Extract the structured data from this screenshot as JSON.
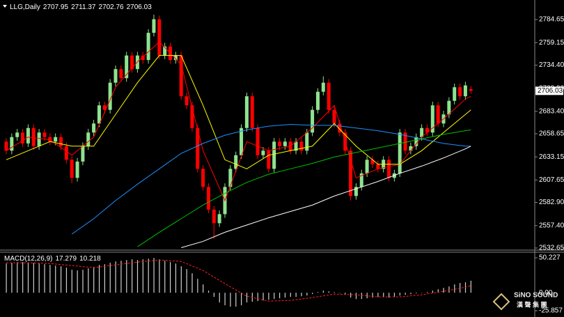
{
  "chart_data": [
    {
      "type": "candlestick",
      "title": "LLG,Daily",
      "up_color": "#8fe38f",
      "down_color": "#ff0000",
      "ylim": [
        2531.1,
        2806.2
      ],
      "yticks": [
        2784.65,
        2759.15,
        {
          "value": 2734.4,
          "label": "2734.40"
        },
        {
          "value": 2708.9,
          "label": "2708.90"
        },
        {
          "value": 2683.4,
          "label": "2683.40"
        },
        2658.65,
        2633.15,
        2607.65,
        {
          "value": 2582.9,
          "label": "2582.90"
        },
        {
          "value": 2557.4,
          "label": "2557.40"
        },
        2532.65
      ],
      "candles": [
        [
          2650,
          2654,
          2636,
          2640
        ],
        [
          2640,
          2659,
          2636,
          2655
        ],
        [
          2655,
          2664,
          2651,
          2660
        ],
        [
          2660,
          2664,
          2644,
          2648
        ],
        [
          2648,
          2669,
          2644,
          2665
        ],
        [
          2665,
          2669,
          2641,
          2645
        ],
        [
          2645,
          2664,
          2641,
          2660
        ],
        [
          2660,
          2664,
          2651,
          2655
        ],
        [
          2655,
          2659,
          2646,
          2650
        ],
        [
          2650,
          2659,
          2646,
          2655
        ],
        [
          2655,
          2659,
          2641,
          2645
        ],
        [
          2645,
          2649,
          2626,
          2630
        ],
        [
          2630,
          2634,
          2604,
          2610
        ],
        [
          2610,
          2632,
          2606,
          2628
        ],
        [
          2628,
          2649,
          2624,
          2645
        ],
        [
          2645,
          2664,
          2641,
          2660
        ],
        [
          2660,
          2674,
          2656,
          2670
        ],
        [
          2670,
          2694,
          2666,
          2690
        ],
        [
          2690,
          2694,
          2681,
          2685
        ],
        [
          2685,
          2719,
          2681,
          2715
        ],
        [
          2715,
          2734,
          2711,
          2730
        ],
        [
          2730,
          2734,
          2716,
          2720
        ],
        [
          2720,
          2749,
          2716,
          2745
        ],
        [
          2745,
          2749,
          2726,
          2730
        ],
        [
          2730,
          2749,
          2726,
          2745
        ],
        [
          2745,
          2749,
          2736,
          2740
        ],
        [
          2740,
          2774,
          2736,
          2770
        ],
        [
          2770,
          2790,
          2766,
          2785
        ],
        [
          2785,
          2789,
          2741,
          2745
        ],
        [
          2745,
          2759,
          2741,
          2755
        ],
        [
          2755,
          2759,
          2736,
          2740
        ],
        [
          2740,
          2749,
          2736,
          2745
        ],
        [
          2745,
          2749,
          2696,
          2700
        ],
        [
          2700,
          2704,
          2686,
          2690
        ],
        [
          2690,
          2694,
          2661,
          2665
        ],
        [
          2665,
          2669,
          2616,
          2620
        ],
        [
          2620,
          2624,
          2596,
          2600
        ],
        [
          2600,
          2604,
          2571,
          2575
        ],
        [
          2575,
          2579,
          2543,
          2560
        ],
        [
          2560,
          2574,
          2556,
          2570
        ],
        [
          2570,
          2604,
          2566,
          2600
        ],
        [
          2600,
          2624,
          2596,
          2620
        ],
        [
          2620,
          2639,
          2616,
          2635
        ],
        [
          2635,
          2669,
          2631,
          2665
        ],
        [
          2665,
          2704,
          2661,
          2700
        ],
        [
          2700,
          2704,
          2661,
          2665
        ],
        [
          2665,
          2669,
          2631,
          2635
        ],
        [
          2635,
          2644,
          2631,
          2640
        ],
        [
          2640,
          2644,
          2616,
          2620
        ],
        [
          2620,
          2654,
          2616,
          2650
        ],
        [
          2650,
          2654,
          2641,
          2645
        ],
        [
          2645,
          2654,
          2641,
          2650
        ],
        [
          2650,
          2654,
          2636,
          2640
        ],
        [
          2640,
          2654,
          2636,
          2650
        ],
        [
          2650,
          2654,
          2636,
          2640
        ],
        [
          2640,
          2664,
          2636,
          2660
        ],
        [
          2660,
          2689,
          2656,
          2685
        ],
        [
          2685,
          2709,
          2681,
          2705
        ],
        [
          2705,
          2722,
          2701,
          2715
        ],
        [
          2715,
          2719,
          2681,
          2685
        ],
        [
          2685,
          2689,
          2666,
          2670
        ],
        [
          2670,
          2674,
          2656,
          2660
        ],
        [
          2660,
          2664,
          2636,
          2640
        ],
        [
          2640,
          2644,
          2585,
          2590
        ],
        [
          2590,
          2604,
          2586,
          2600
        ],
        [
          2600,
          2619,
          2596,
          2615
        ],
        [
          2615,
          2634,
          2611,
          2630
        ],
        [
          2630,
          2634,
          2621,
          2625
        ],
        [
          2625,
          2629,
          2616,
          2620
        ],
        [
          2620,
          2634,
          2616,
          2630
        ],
        [
          2630,
          2634,
          2606,
          2610
        ],
        [
          2610,
          2619,
          2606,
          2615
        ],
        [
          2615,
          2664,
          2611,
          2660
        ],
        [
          2660,
          2664,
          2636,
          2640
        ],
        [
          2640,
          2649,
          2636,
          2645
        ],
        [
          2645,
          2659,
          2641,
          2655
        ],
        [
          2655,
          2669,
          2651,
          2665
        ],
        [
          2665,
          2669,
          2656,
          2660
        ],
        [
          2660,
          2694,
          2656,
          2690
        ],
        [
          2690,
          2694,
          2666,
          2670
        ],
        [
          2670,
          2684,
          2666,
          2680
        ],
        [
          2680,
          2699,
          2676,
          2695
        ],
        [
          2695,
          2714,
          2691,
          2710
        ],
        [
          2710,
          2714,
          2696,
          2700
        ],
        [
          2700,
          2716,
          2696,
          2712
        ],
        [
          2707.95,
          2711.37,
          2702.76,
          2706.03
        ]
      ],
      "line_x": [
        0,
        4,
        8,
        12,
        16,
        20,
        24,
        28,
        32,
        36,
        40,
        44,
        48,
        52,
        56,
        60,
        64,
        68,
        72,
        76,
        80,
        84,
        85
      ],
      "series": [
        {
          "color": "#ff0000",
          "values": [
            2640,
            2655,
            2652,
            2635,
            2655,
            2710,
            2738,
            2760,
            2735,
            2640,
            2585,
            2650,
            2640,
            2645,
            2665,
            2690,
            2610,
            2620,
            2625,
            2655,
            2675,
            2697,
            2700
          ]
        },
        {
          "color": "#ffff00",
          "values": [
            2630,
            2640,
            2650,
            2645,
            2645,
            2680,
            2715,
            2745,
            2745,
            2690,
            2630,
            2620,
            2635,
            2640,
            2645,
            2670,
            2645,
            2625,
            2625,
            2640,
            2660,
            2680,
            2685
          ]
        },
        {
          "color": "#1e90ff",
          "values": [
            null,
            null,
            null,
            2548,
            2565,
            2585,
            2603,
            2620,
            2637,
            2648,
            2657,
            2663,
            2667,
            2669,
            2668,
            2668,
            2665,
            2662,
            2658,
            2653,
            2648,
            2645,
            2645
          ]
        },
        {
          "color": "#00c000",
          "values": [
            null,
            null,
            null,
            null,
            null,
            null,
            2534,
            2550,
            2565,
            2580,
            2593,
            2605,
            2614,
            2620,
            2626,
            2633,
            2638,
            2643,
            2648,
            2653,
            2658,
            2662,
            2663
          ]
        },
        {
          "color": "#ffffff",
          "values": [
            null,
            null,
            null,
            null,
            null,
            null,
            null,
            null,
            2533,
            2540,
            2550,
            2558,
            2566,
            2573,
            2580,
            2590,
            2598,
            2606,
            2615,
            2623,
            2632,
            2642,
            2645
          ]
        }
      ]
    },
    {
      "type": "bar",
      "title": "MACD(12,26,9)",
      "color": "#d0d0d0",
      "signal_color": "#ff2020",
      "ylim": [
        -25.857,
        50.227
      ],
      "yticks": [
        50.227,
        {
          "value": 0,
          "label": "0.00"
        },
        -25.857
      ],
      "values": [
        42,
        43,
        44,
        44,
        43,
        43,
        42,
        41,
        40,
        39,
        38,
        36,
        33,
        32,
        33,
        35,
        37,
        40,
        41,
        43,
        45,
        46,
        47,
        48,
        47,
        48,
        49,
        50,
        48,
        46,
        44,
        42,
        38,
        34,
        28,
        20,
        12,
        3,
        -6,
        -14,
        -18,
        -20,
        -20,
        -18,
        -14,
        -13,
        -12,
        -11,
        -10,
        -9,
        -8,
        -7,
        -6,
        -6,
        -5,
        -4,
        -2,
        1,
        3,
        2,
        1,
        0,
        -2,
        -7,
        -9,
        -9,
        -8,
        -7,
        -6,
        -6,
        -7,
        -6,
        -4,
        -3,
        -2,
        -1,
        0,
        1,
        3,
        5,
        7,
        9,
        12,
        14,
        15,
        17.279
      ],
      "signal": [
        43,
        43,
        42,
        39,
        36,
        40,
        44,
        47,
        45,
        32,
        13,
        -5,
        -12,
        -11,
        -7,
        -2,
        -3,
        -6,
        -6,
        -3,
        2,
        8,
        10.218
      ]
    }
  ],
  "watermark": {
    "brand": "SiNO SOUND",
    "name": "漢 聲 集 團"
  }
}
